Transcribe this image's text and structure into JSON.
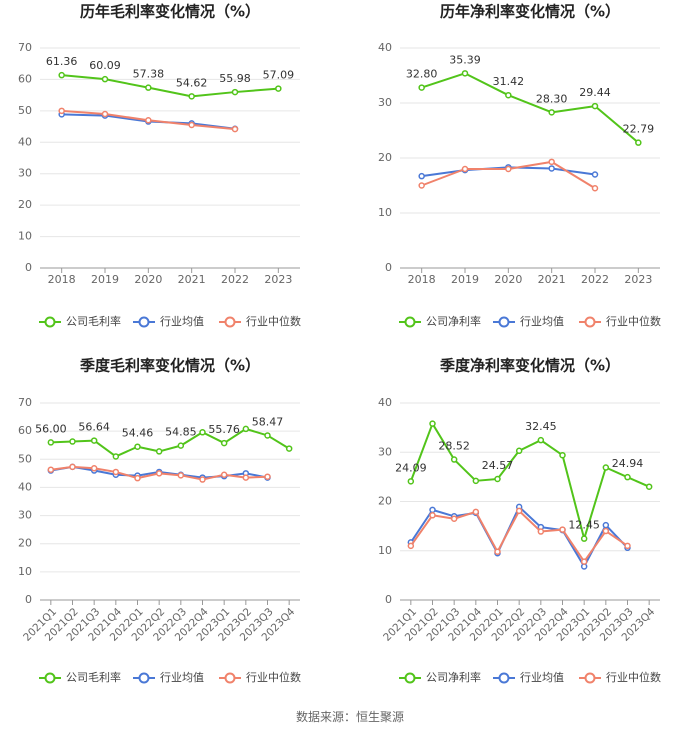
{
  "colors": {
    "company": "#52c41a",
    "industry_avg": "#4a78d6",
    "industry_median": "#f0826b",
    "grid": "#e6e6e6",
    "axis": "#999999",
    "tick_text": "#666666",
    "label_text": "#333333",
    "title_text": "#222222"
  },
  "footer": {
    "source": "数据来源：恒生聚源"
  },
  "chart_data": [
    {
      "type": "line",
      "title": "历年毛利率变化情况（%）",
      "categories": [
        "2018",
        "2019",
        "2020",
        "2021",
        "2022",
        "2023"
      ],
      "ylim": [
        0,
        70
      ],
      "yticks": [
        0,
        10,
        20,
        30,
        40,
        50,
        60,
        70
      ],
      "grid": true,
      "legend": "bottom",
      "series": [
        {
          "name": "公司毛利率",
          "key": "company",
          "values": [
            61.36,
            60.09,
            57.38,
            54.62,
            55.98,
            57.09
          ],
          "labels": [
            "61.36",
            "60.09",
            "57.38",
            "54.62",
            "55.98",
            "57.09"
          ]
        },
        {
          "name": "行业均值",
          "key": "industry_avg",
          "values": [
            48.9,
            48.5,
            46.6,
            46.0,
            44.3,
            null
          ]
        },
        {
          "name": "行业中位数",
          "key": "industry_median",
          "values": [
            50.0,
            49.0,
            47.0,
            45.5,
            44.2,
            null
          ]
        }
      ]
    },
    {
      "type": "line",
      "title": "历年净利率变化情况（%）",
      "categories": [
        "2018",
        "2019",
        "2020",
        "2021",
        "2022",
        "2023"
      ],
      "ylim": [
        0,
        40
      ],
      "yticks": [
        0,
        10,
        20,
        30,
        40
      ],
      "grid": true,
      "legend": "bottom",
      "series": [
        {
          "name": "公司净利率",
          "key": "company",
          "values": [
            32.8,
            35.39,
            31.42,
            28.3,
            29.44,
            22.79
          ],
          "labels": [
            "32.80",
            "35.39",
            "31.42",
            "28.30",
            "29.44",
            "22.79"
          ]
        },
        {
          "name": "行业均值",
          "key": "industry_avg",
          "values": [
            16.7,
            17.8,
            18.3,
            18.1,
            17.0,
            null
          ]
        },
        {
          "name": "行业中位数",
          "key": "industry_median",
          "values": [
            15.0,
            18.0,
            18.0,
            19.3,
            14.5,
            null
          ]
        }
      ]
    },
    {
      "type": "line",
      "title": "季度毛利率变化情况（%）",
      "categories": [
        "2021Q1",
        "2021Q2",
        "2021Q3",
        "2021Q4",
        "2022Q1",
        "2022Q2",
        "2022Q3",
        "2022Q4",
        "2023Q1",
        "2023Q2",
        "2023Q3",
        "2023Q4"
      ],
      "ylim": [
        0,
        70
      ],
      "yticks": [
        0,
        10,
        20,
        30,
        40,
        50,
        60,
        70
      ],
      "grid": true,
      "legend": "bottom",
      "series": [
        {
          "name": "公司毛利率",
          "key": "company",
          "values": [
            56.0,
            56.3,
            56.64,
            51.0,
            54.46,
            52.8,
            54.85,
            59.6,
            55.76,
            60.8,
            58.47,
            53.8
          ],
          "labels": [
            "56.00",
            null,
            "56.64",
            null,
            "54.46",
            null,
            "54.85",
            null,
            "55.76",
            null,
            "58.47",
            null
          ]
        },
        {
          "name": "行业均值",
          "key": "industry_avg",
          "values": [
            46.0,
            47.3,
            46.0,
            44.5,
            44.2,
            45.5,
            44.5,
            43.5,
            44.0,
            45.0,
            43.5,
            null
          ]
        },
        {
          "name": "行业中位数",
          "key": "industry_median",
          "values": [
            46.3,
            47.3,
            46.8,
            45.5,
            43.3,
            45.0,
            44.3,
            42.8,
            44.5,
            43.5,
            43.8,
            null
          ]
        }
      ]
    },
    {
      "type": "line",
      "title": "季度净利率变化情况（%）",
      "categories": [
        "2021Q1",
        "2021Q2",
        "2021Q3",
        "2021Q4",
        "2022Q1",
        "2022Q2",
        "2022Q3",
        "2022Q4",
        "2023Q1",
        "2023Q2",
        "2023Q3",
        "2023Q4"
      ],
      "ylim": [
        0,
        40
      ],
      "yticks": [
        0,
        10,
        20,
        30,
        40
      ],
      "grid": true,
      "legend": "bottom",
      "series": [
        {
          "name": "公司净利率",
          "key": "company",
          "values": [
            24.09,
            35.8,
            28.52,
            24.2,
            24.57,
            30.3,
            32.45,
            29.4,
            12.45,
            26.9,
            24.94,
            23.0
          ],
          "labels": [
            "24.09",
            null,
            "28.52",
            null,
            "24.57",
            null,
            "32.45",
            null,
            "12.45",
            null,
            "24.94",
            null
          ]
        },
        {
          "name": "行业均值",
          "key": "industry_avg",
          "values": [
            11.7,
            18.3,
            17.0,
            17.7,
            9.5,
            18.9,
            14.8,
            14.2,
            6.8,
            15.2,
            10.6,
            null
          ]
        },
        {
          "name": "行业中位数",
          "key": "industry_median",
          "values": [
            11.0,
            17.2,
            16.5,
            17.9,
            9.8,
            18.1,
            13.9,
            14.3,
            7.8,
            14.0,
            11.0,
            null
          ]
        }
      ]
    }
  ]
}
